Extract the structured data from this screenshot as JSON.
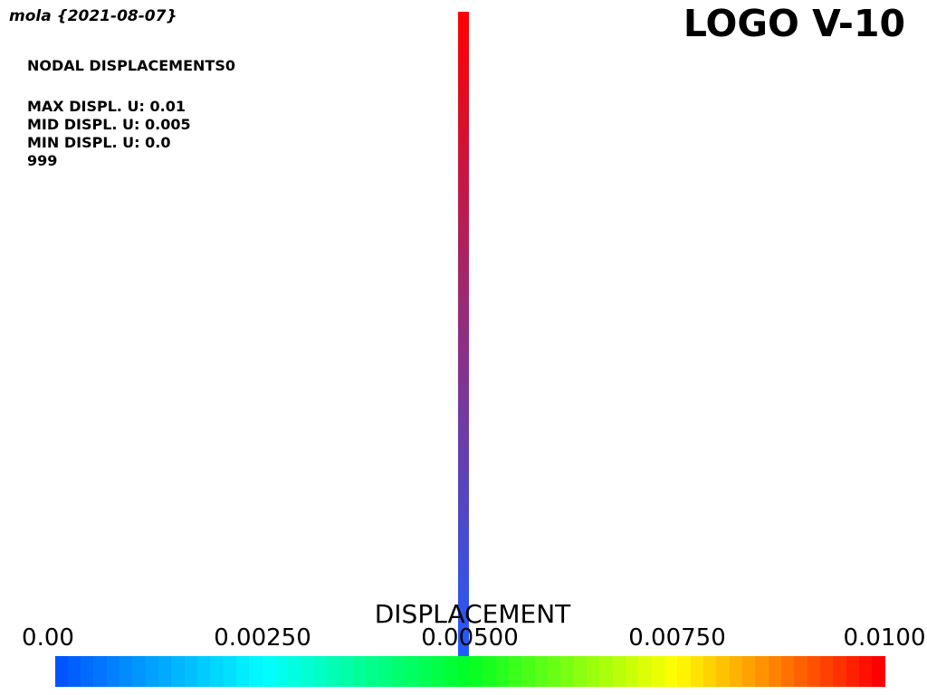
{
  "header": {
    "signature": "mola {2021-08-07}",
    "logo": "LOGO V-10"
  },
  "info": {
    "heading": "NODAL DISPLACEMENTS0",
    "max": "MAX DISPL. U: 0.01",
    "mid": "MID DISPL. U: 0.005",
    "min": "MIN DISPL. U: 0.0",
    "frame": "999"
  },
  "model": {
    "element": "vertical-beam",
    "color_bottom": "#1f5cff",
    "color_top": "#ff0000",
    "displacement_bottom": 0.0,
    "displacement_top": 0.01
  },
  "colorbar": {
    "title": "DISPLACEMENT",
    "ticks": [
      "0.00",
      "0.00250",
      "0.00500",
      "0.00750",
      "0.0100"
    ],
    "range": [
      0.0,
      0.01
    ],
    "colors": [
      "#0055ff",
      "#00ffff",
      "#00ff22",
      "#ffff00",
      "#ff0000"
    ],
    "steps": 64
  }
}
